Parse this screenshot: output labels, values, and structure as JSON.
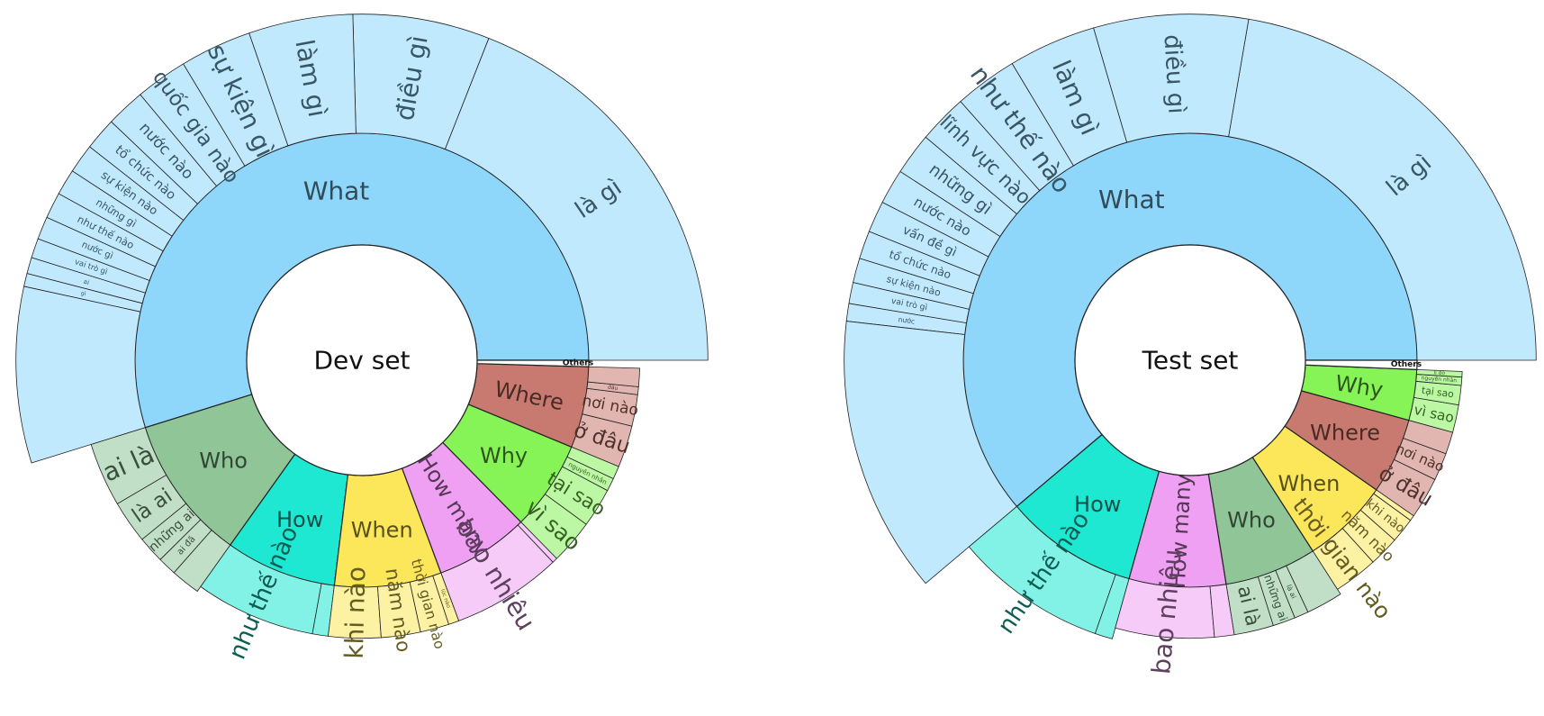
{
  "chart_data": [
    {
      "type": "sunburst",
      "title": "Dev set",
      "start_angle_deg": 0,
      "palette": {
        "What": "#8ed7fb",
        "Who": "#8fc597",
        "How": "#1ee8d1",
        "When": "#fce65a",
        "How many": "#efa0f3",
        "Why": "#86f357",
        "Where": "#c97a70",
        "Others": "#ffffff"
      },
      "categories": [
        {
          "name": "What",
          "value": 360,
          "reach": 1.05,
          "children": [
            {
              "name": "là gì",
              "value": 125
            },
            {
              "name": "điều gì",
              "value": 42
            },
            {
              "name": "làm gì",
              "value": 32
            },
            {
              "name": "sự kiện gì",
              "value": 22
            },
            {
              "name": "quốc gia nào",
              "value": 16
            },
            {
              "name": "nước nào",
              "value": 12
            },
            {
              "name": "tổ chức nào",
              "value": 10
            },
            {
              "name": "sự kiện nào",
              "value": 9
            },
            {
              "name": "những gì",
              "value": 8
            },
            {
              "name": "như thế nào",
              "value": 8
            },
            {
              "name": "nước gì",
              "value": 7
            },
            {
              "name": "vai trò gì",
              "value": 6
            },
            {
              "name": "ai",
              "value": 5
            },
            {
              "name": "gì",
              "value": 4
            },
            {
              "name": "",
              "value": 54
            }
          ]
        },
        {
          "name": "Who",
          "value": 68,
          "reach": 0.5,
          "children": [
            {
              "name": "ai là",
              "value": 24
            },
            {
              "name": "là ai",
              "value": 16
            },
            {
              "name": "những ai",
              "value": 10
            },
            {
              "name": "ai đã",
              "value": 7
            },
            {
              "name": "",
              "value": 11
            }
          ]
        },
        {
          "name": "How",
          "value": 52,
          "reach": 0.45,
          "children": [
            {
              "name": "như thế nào",
              "value": 46
            },
            {
              "name": "",
              "value": 6
            }
          ]
        },
        {
          "name": "When",
          "value": 50,
          "reach": 0.45,
          "children": [
            {
              "name": "khi nào",
              "value": 20
            },
            {
              "name": "năm nào",
              "value": 15
            },
            {
              "name": "thời gian nào",
              "value": 11
            },
            {
              "name": "lúc nào",
              "value": 4
            }
          ]
        },
        {
          "name": "How many",
          "value": 44,
          "reach": 0.45,
          "children": [
            {
              "name": "bao nhiêu",
              "value": 42
            },
            {
              "name": "",
              "value": 2
            }
          ]
        },
        {
          "name": "Why",
          "value": 42,
          "reach": 0.45,
          "children": [
            {
              "name": "vì sao",
              "value": 17
            },
            {
              "name": "tại sao",
              "value": 15
            },
            {
              "name": "nguyên nhân",
              "value": 5
            },
            {
              "name": "",
              "value": 5
            }
          ]
        },
        {
          "name": "Where",
          "value": 38,
          "reach": 0.45,
          "children": [
            {
              "name": "ở đâu",
              "value": 16
            },
            {
              "name": "nơi nào",
              "value": 12
            },
            {
              "name": "đâu",
              "value": 3
            },
            {
              "name": "",
              "value": 7
            }
          ]
        },
        {
          "name": "Others",
          "value": 3,
          "reach": 0,
          "children": []
        }
      ]
    },
    {
      "type": "sunburst",
      "title": "Test set",
      "start_angle_deg": 0,
      "palette": {
        "What": "#8ed7fb",
        "Why": "#86f357",
        "Where": "#c97a70",
        "When": "#fce65a",
        "Who": "#8fc597",
        "How many": "#efa0f3",
        "How": "#1ee8d1",
        "Others": "#ffffff"
      },
      "categories": [
        {
          "name": "What",
          "value": 373,
          "reach": 1.05,
          "children": [
            {
              "name": "là gì",
              "value": 136
            },
            {
              "name": "điều gì",
              "value": 44
            },
            {
              "name": "làm gì",
              "value": 25
            },
            {
              "name": "như thế nào",
              "value": 18
            },
            {
              "name": "lĩnh vực nào",
              "value": 14
            },
            {
              "name": "những gì",
              "value": 12
            },
            {
              "name": "nước nào",
              "value": 10
            },
            {
              "name": "vấn đề gì",
              "value": 9
            },
            {
              "name": "tổ chức nào",
              "value": 8
            },
            {
              "name": "sự kiện nào",
              "value": 7
            },
            {
              "name": "vai trò gì",
              "value": 6
            },
            {
              "name": "nước",
              "value": 5
            },
            {
              "name": "",
              "value": 79
            }
          ]
        },
        {
          "name": "How",
          "value": 58,
          "reach": 0.55,
          "children": [
            {
              "name": "như thế nào",
              "value": 52
            },
            {
              "name": "",
              "value": 6
            }
          ]
        },
        {
          "name": "How many",
          "value": 42,
          "reach": 0.45,
          "children": [
            {
              "name": "bao nhiêu",
              "value": 35
            },
            {
              "name": "",
              "value": 7
            }
          ]
        },
        {
          "name": "Who",
          "value": 40,
          "reach": 0.45,
          "children": [
            {
              "name": "ai là",
              "value": 14
            },
            {
              "name": "những ai",
              "value": 8
            },
            {
              "name": "là ai",
              "value": 5
            },
            {
              "name": "",
              "value": 13
            }
          ]
        },
        {
          "name": "When",
          "value": 38,
          "reach": 0.4,
          "children": [
            {
              "name": "thời gian nào",
              "value": 16
            },
            {
              "name": "năm nào",
              "value": 11
            },
            {
              "name": "khi nào",
              "value": 9
            },
            {
              "name": "",
              "value": 2
            }
          ]
        },
        {
          "name": "Where",
          "value": 33,
          "reach": 0.4,
          "children": [
            {
              "name": "ở đâu",
              "value": 15
            },
            {
              "name": "nơi nào",
              "value": 10
            },
            {
              "name": "",
              "value": 8
            }
          ]
        },
        {
          "name": "Why",
          "value": 22,
          "reach": 0.4,
          "children": [
            {
              "name": "vì sao",
              "value": 10
            },
            {
              "name": "tại sao",
              "value": 7
            },
            {
              "name": "nguyên nhân",
              "value": 3
            },
            {
              "name": "lí do",
              "value": 2
            }
          ]
        },
        {
          "name": "Others",
          "value": 4,
          "reach": 0,
          "children": []
        }
      ]
    }
  ]
}
